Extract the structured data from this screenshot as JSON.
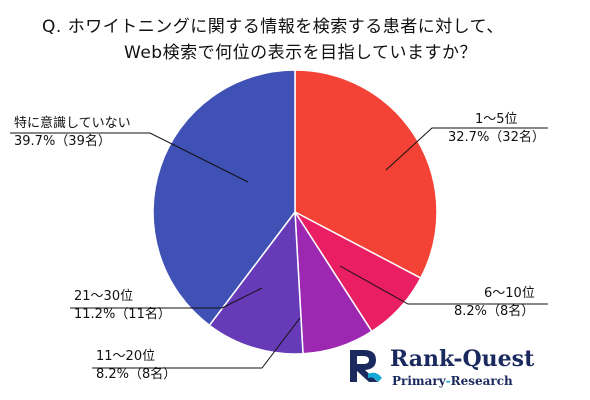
{
  "chart_data": {
    "type": "pie",
    "title_lines": [
      "Q.  ホワイトニングに関する情報を検索する患者に対して、",
      "Web検索で何位の表示を目指していますか？"
    ],
    "slices": [
      {
        "name": "1～5位",
        "percent": 32.7,
        "count_label": "32.7%（32名）",
        "color": "#f44336"
      },
      {
        "name": "6～10位",
        "percent": 8.2,
        "count_label": "8.2%（8名）",
        "color": "#e91e63"
      },
      {
        "name": "11～20位",
        "percent": 8.2,
        "count_label": "8.2%（8名）",
        "color": "#9c27b0"
      },
      {
        "name": "21～30位",
        "percent": 11.2,
        "count_label": "11.2%（11名）",
        "color": "#673ab7"
      },
      {
        "name": "特に意識していない",
        "percent": 39.7,
        "count_label": "39.7%（39名）",
        "color": "#3f51b5"
      }
    ],
    "start_angle": "12 o'clock",
    "direction": "clockwise"
  },
  "logo": {
    "brand": "Rank-Quest",
    "subtitle_primary": "Primary",
    "subtitle_sep": "-",
    "subtitle_research": "Research",
    "colors": {
      "navy": "#1b2a5e",
      "cyan": "#12a9d6"
    }
  }
}
